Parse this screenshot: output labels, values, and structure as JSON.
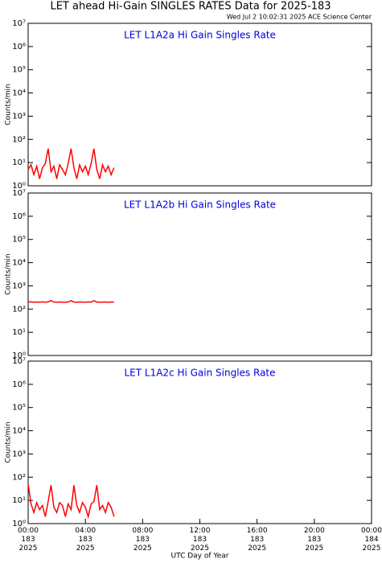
{
  "chart_data": [
    {
      "type": "line",
      "title": "LET ahead Hi-Gain SINGLES RATES Data for 2025-183",
      "subtitle": "Wed Jul  2 10:02:31 2025 ACE Science Center",
      "annotation": "LET L1A2a Hi Gain Singles Rate",
      "ylabel": "Counts/min",
      "log": true,
      "color": "#ff0000",
      "xlim": [
        0,
        24
      ],
      "ylim": [
        1,
        10000000
      ],
      "yticks": [
        {
          "value": 1,
          "label": "10⁰"
        },
        {
          "value": 10,
          "label": "10¹"
        },
        {
          "value": 100,
          "label": "10²"
        },
        {
          "value": 1000,
          "label": "10³"
        },
        {
          "value": 10000,
          "label": "10⁴"
        },
        {
          "value": 100000,
          "label": "10⁵"
        },
        {
          "value": 1000000,
          "label": "10⁶"
        },
        {
          "value": 10000000,
          "label": "10⁷"
        }
      ],
      "x": [
        0,
        0.2,
        0.4,
        0.6,
        0.8,
        1,
        1.2,
        1.4,
        1.6,
        1.8,
        2,
        2.2,
        2.4,
        2.6,
        2.8,
        3,
        3.2,
        3.4,
        3.6,
        3.8,
        4,
        4.2,
        4.4,
        4.6,
        4.8,
        5,
        5.2,
        5.4,
        5.6,
        5.8,
        6
      ],
      "values": [
        5,
        8,
        3,
        7,
        2,
        6,
        9,
        40,
        4,
        7,
        2,
        8,
        5,
        3,
        9,
        40,
        6,
        2,
        8,
        4,
        7,
        3,
        9,
        40,
        5,
        2,
        8,
        4,
        7,
        3,
        6
      ]
    },
    {
      "type": "line",
      "annotation": "LET L1A2b Hi Gain Singles Rate",
      "ylabel": "Counts/min",
      "log": true,
      "color": "#ff0000",
      "xlim": [
        0,
        24
      ],
      "ylim": [
        1,
        10000000
      ],
      "yticks": [
        {
          "value": 1,
          "label": "10⁰"
        },
        {
          "value": 10,
          "label": "10¹"
        },
        {
          "value": 100,
          "label": "10²"
        },
        {
          "value": 1000,
          "label": "10³"
        },
        {
          "value": 10000,
          "label": "10⁴"
        },
        {
          "value": 100000,
          "label": "10⁵"
        },
        {
          "value": 1000000,
          "label": "10⁶"
        },
        {
          "value": 10000000,
          "label": "10⁷"
        }
      ],
      "x": [
        0,
        0.2,
        0.4,
        0.6,
        0.8,
        1,
        1.2,
        1.4,
        1.6,
        1.8,
        2,
        2.2,
        2.4,
        2.6,
        2.8,
        3,
        3.2,
        3.4,
        3.6,
        3.8,
        4,
        4.2,
        4.4,
        4.6,
        4.8,
        5,
        5.2,
        5.4,
        5.6,
        5.8,
        6
      ],
      "values": [
        200,
        205,
        198,
        202,
        200,
        203,
        199,
        205,
        230,
        201,
        198,
        202,
        200,
        199,
        203,
        230,
        200,
        198,
        202,
        201,
        199,
        203,
        200,
        230,
        201,
        198,
        200,
        202,
        199,
        201,
        200
      ]
    },
    {
      "type": "line",
      "annotation": "LET L1A2c Hi Gain Singles Rate",
      "ylabel": "Counts/min",
      "xlabel": "UTC Day of Year",
      "log": true,
      "color": "#ff0000",
      "xlim": [
        0,
        24
      ],
      "ylim": [
        1,
        10000000
      ],
      "xticks": [
        {
          "value": 0,
          "label": "00:00\n183\n2025"
        },
        {
          "value": 4,
          "label": "04:00\n183\n2025"
        },
        {
          "value": 8,
          "label": "08:00\n183\n2025"
        },
        {
          "value": 12,
          "label": "12:00\n183\n2025"
        },
        {
          "value": 16,
          "label": "16:00\n183\n2025"
        },
        {
          "value": 20,
          "label": "20:00\n183\n2025"
        },
        {
          "value": 24,
          "label": "00:00\n184\n2025"
        }
      ],
      "yticks": [
        {
          "value": 1,
          "label": "10⁰"
        },
        {
          "value": 10,
          "label": "10¹"
        },
        {
          "value": 100,
          "label": "10²"
        },
        {
          "value": 1000,
          "label": "10³"
        },
        {
          "value": 10000,
          "label": "10⁴"
        },
        {
          "value": 100000,
          "label": "10⁵"
        },
        {
          "value": 1000000,
          "label": "10⁶"
        },
        {
          "value": 10000000,
          "label": "10⁷"
        }
      ],
      "x": [
        0,
        0.2,
        0.4,
        0.6,
        0.8,
        1,
        1.2,
        1.4,
        1.6,
        1.8,
        2,
        2.2,
        2.4,
        2.6,
        2.8,
        3,
        3.2,
        3.4,
        3.6,
        3.8,
        4,
        4.2,
        4.4,
        4.6,
        4.8,
        5,
        5.2,
        5.4,
        5.6,
        5.8,
        6
      ],
      "values": [
        50,
        7,
        3,
        8,
        4,
        6,
        2,
        9,
        45,
        5,
        3,
        8,
        6,
        2,
        7,
        4,
        45,
        6,
        3,
        8,
        5,
        2,
        7,
        9,
        45,
        4,
        6,
        3,
        8,
        5,
        2
      ]
    }
  ]
}
